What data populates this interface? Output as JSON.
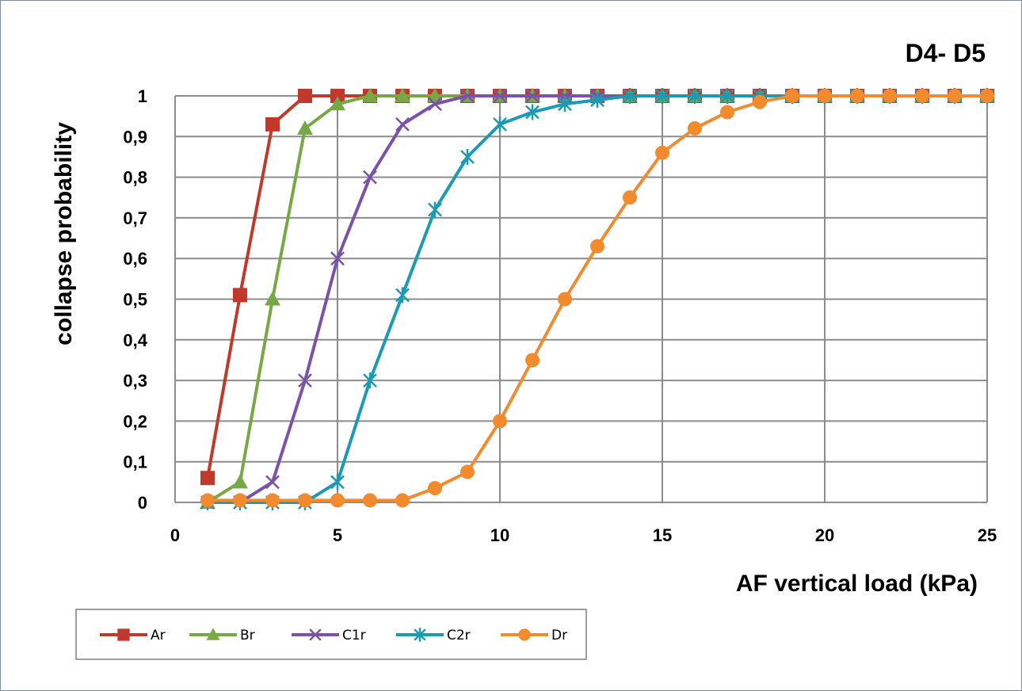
{
  "chart_data": {
    "type": "line",
    "title": "D4- D5",
    "xlabel": "AF vertical load (kPa)",
    "ylabel": "collapse probability",
    "xlim": [
      0,
      25
    ],
    "ylim": [
      0,
      1
    ],
    "x_ticks": [
      "0",
      "5",
      "10",
      "15",
      "20",
      "25"
    ],
    "y_ticks": [
      "0",
      "0,1",
      "0,2",
      "0,3",
      "0,4",
      "0,5",
      "0,6",
      "0,7",
      "0,8",
      "0,9",
      "1"
    ],
    "grid": true,
    "legend_position": "bottom-left",
    "x": [
      1,
      2,
      3,
      4,
      5,
      6,
      7,
      8,
      9,
      10,
      11,
      12,
      13,
      14,
      15,
      16,
      17,
      18,
      19,
      20,
      21,
      22,
      23,
      24,
      25
    ],
    "series": [
      {
        "name": "Ar",
        "color": "#c0392b",
        "marker": "square",
        "values": [
          0.06,
          0.51,
          0.93,
          1,
          1,
          1,
          1,
          1,
          1,
          1,
          1,
          1,
          1,
          1,
          1,
          1,
          1,
          1,
          1,
          1,
          1,
          1,
          1,
          1,
          1
        ]
      },
      {
        "name": "Br",
        "color": "#77a844",
        "marker": "triangle",
        "values": [
          0,
          0.05,
          0.5,
          0.92,
          0.98,
          1,
          1,
          1,
          1,
          1,
          1,
          1,
          1,
          1,
          1,
          1,
          1,
          1,
          1,
          1,
          1,
          1,
          1,
          1,
          1
        ]
      },
      {
        "name": "C1r",
        "color": "#7b52a8",
        "marker": "x",
        "values": [
          0,
          0,
          0.05,
          0.3,
          0.6,
          0.8,
          0.93,
          0.98,
          1,
          1,
          1,
          1,
          1,
          1,
          1,
          1,
          1,
          1,
          1,
          1,
          1,
          1,
          1,
          1,
          1
        ]
      },
      {
        "name": "C2r",
        "color": "#1a9bb3",
        "marker": "star",
        "values": [
          0,
          0,
          0,
          0,
          0.05,
          0.3,
          0.51,
          0.72,
          0.85,
          0.93,
          0.96,
          0.98,
          0.99,
          1,
          1,
          1,
          1,
          1,
          1,
          1,
          1,
          1,
          1,
          1,
          1
        ]
      },
      {
        "name": "Dr",
        "color": "#f28a2e",
        "marker": "circle",
        "values": [
          0.005,
          0.005,
          0.005,
          0.005,
          0.005,
          0.005,
          0.005,
          0.035,
          0.075,
          0.2,
          0.35,
          0.5,
          0.63,
          0.75,
          0.86,
          0.92,
          0.96,
          0.985,
          1,
          1,
          1,
          1,
          1,
          1,
          1
        ]
      }
    ]
  }
}
